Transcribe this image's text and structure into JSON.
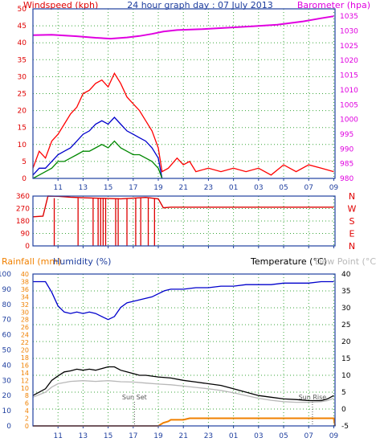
{
  "colors": {
    "frame": "#1f3f9f",
    "grid": "#3aa63a",
    "gust": "#ff0000",
    "wind_avg": "#0000cc",
    "wind_low": "#008800",
    "barometer": "#e000e0",
    "direction": "#dd0000",
    "humidity": "#0000cc",
    "temperature": "#000000",
    "dewpoint": "#b8b8b8",
    "rainfall": "#f08000",
    "label_red": "#e00000",
    "label_magenta": "#e000e0",
    "label_blue": "#1f3f9f",
    "label_orange": "#f08000"
  },
  "chart_data": [
    {
      "type": "line",
      "title": "24 hour graph day : 07 July 2013",
      "ylabel": "Windspeed (kph)",
      "y2label": "Barometer (hpa)",
      "x_start_hour": 9,
      "x_end_hour": 33.1,
      "x_ticks": [
        "11",
        "13",
        "15",
        "17",
        "19",
        "21",
        "23",
        "01",
        "03",
        "05",
        "07",
        "09"
      ],
      "ylim": [
        0,
        50
      ],
      "yticks": [
        0,
        5,
        10,
        15,
        20,
        25,
        30,
        35,
        40,
        45,
        50
      ],
      "y2lim": [
        980,
        1037.5
      ],
      "y2ticks": [
        980,
        985,
        990,
        995,
        1000,
        1005,
        1010,
        1015,
        1020,
        1025,
        1030,
        1035
      ],
      "grid": true,
      "series": [
        {
          "name": "Barometer",
          "axis": "right",
          "points": [
            [
              9.0,
              1028.6
            ],
            [
              10.5,
              1028.7
            ],
            [
              12.5,
              1028.2
            ],
            [
              14.0,
              1027.7
            ],
            [
              15.2,
              1027.4
            ],
            [
              16.5,
              1027.8
            ],
            [
              17.5,
              1028.3
            ],
            [
              18.5,
              1029.0
            ],
            [
              19.4,
              1029.8
            ],
            [
              20.5,
              1030.3
            ],
            [
              22.5,
              1030.6
            ],
            [
              24.5,
              1031.1
            ],
            [
              26.5,
              1031.6
            ],
            [
              28.5,
              1032.1
            ],
            [
              30.5,
              1033.2
            ],
            [
              32.0,
              1034.3
            ],
            [
              33.0,
              1035.0
            ]
          ]
        },
        {
          "name": "Gust",
          "axis": "left",
          "points": [
            [
              9.0,
              3
            ],
            [
              9.5,
              8
            ],
            [
              10.0,
              6
            ],
            [
              10.5,
              11
            ],
            [
              11.0,
              13
            ],
            [
              11.5,
              16
            ],
            [
              12.0,
              19
            ],
            [
              12.5,
              21
            ],
            [
              13.0,
              25
            ],
            [
              13.5,
              26
            ],
            [
              14.0,
              28
            ],
            [
              14.5,
              29
            ],
            [
              15.0,
              27
            ],
            [
              15.5,
              31
            ],
            [
              16.0,
              28
            ],
            [
              16.5,
              24
            ],
            [
              17.0,
              22
            ],
            [
              17.5,
              20
            ],
            [
              18.0,
              17
            ],
            [
              18.5,
              14
            ],
            [
              19.0,
              9
            ],
            [
              19.3,
              2
            ],
            [
              19.8,
              3
            ],
            [
              20.5,
              6
            ],
            [
              21.0,
              4
            ],
            [
              21.5,
              5
            ],
            [
              22.0,
              2
            ],
            [
              23.0,
              3
            ],
            [
              24.0,
              2
            ],
            [
              25.0,
              3
            ],
            [
              26.0,
              2
            ],
            [
              27.0,
              3
            ],
            [
              28.0,
              1
            ],
            [
              29.0,
              4
            ],
            [
              30.0,
              2
            ],
            [
              31.0,
              4
            ],
            [
              32.0,
              3
            ],
            [
              33.0,
              2
            ]
          ]
        },
        {
          "name": "Wind Average",
          "axis": "left",
          "points": [
            [
              9.0,
              1
            ],
            [
              9.5,
              3
            ],
            [
              10.0,
              3
            ],
            [
              10.5,
              5
            ],
            [
              11.0,
              7
            ],
            [
              11.5,
              8
            ],
            [
              12.0,
              9
            ],
            [
              12.5,
              11
            ],
            [
              13.0,
              13
            ],
            [
              13.5,
              14
            ],
            [
              14.0,
              16
            ],
            [
              14.5,
              17
            ],
            [
              15.0,
              16
            ],
            [
              15.5,
              18
            ],
            [
              16.0,
              16
            ],
            [
              16.5,
              14
            ],
            [
              17.0,
              13
            ],
            [
              17.5,
              12
            ],
            [
              18.0,
              11
            ],
            [
              18.5,
              9
            ],
            [
              19.0,
              6
            ],
            [
              19.3,
              0
            ]
          ]
        },
        {
          "name": "Wind Low",
          "axis": "left",
          "points": [
            [
              9.0,
              0
            ],
            [
              9.5,
              1
            ],
            [
              10.0,
              2
            ],
            [
              10.5,
              3
            ],
            [
              11.0,
              5
            ],
            [
              11.5,
              5
            ],
            [
              12.0,
              6
            ],
            [
              12.5,
              7
            ],
            [
              13.0,
              8
            ],
            [
              13.5,
              8
            ],
            [
              14.0,
              9
            ],
            [
              14.5,
              10
            ],
            [
              15.0,
              9
            ],
            [
              15.5,
              11
            ],
            [
              16.0,
              9
            ],
            [
              16.5,
              8
            ],
            [
              17.0,
              7
            ],
            [
              17.5,
              7
            ],
            [
              18.0,
              6
            ],
            [
              18.5,
              5
            ],
            [
              19.0,
              3
            ],
            [
              19.3,
              0
            ]
          ]
        }
      ]
    },
    {
      "type": "line",
      "ylabel_letters": [
        "N",
        "W",
        "S",
        "E",
        "N"
      ],
      "ylim": [
        0,
        360
      ],
      "yticks": [
        0,
        90,
        180,
        270,
        360
      ],
      "grid": true,
      "series": [
        {
          "name": "Wind Direction",
          "points": [
            [
              9.0,
              210
            ],
            [
              9.8,
              215
            ],
            [
              10.2,
              360
            ],
            [
              11.0,
              358
            ],
            [
              12.0,
              352
            ],
            [
              13.0,
              348
            ],
            [
              14.0,
              345
            ],
            [
              15.0,
              343
            ],
            [
              16.0,
              340
            ],
            [
              17.0,
              345
            ],
            [
              18.0,
              350
            ],
            [
              19.0,
              340
            ],
            [
              19.4,
              275
            ],
            [
              20.0,
              280
            ],
            [
              33.0,
              280
            ]
          ]
        },
        {
          "name": "Direction Drops",
          "drops": [
            10.7,
            12.6,
            13.8,
            14.2,
            14.4,
            14.6,
            14.8,
            15.6,
            15.8,
            16.5,
            17.2,
            17.6,
            18.2,
            18.7
          ]
        }
      ]
    },
    {
      "type": "line",
      "ylabel_left": "Rainfall (mm)",
      "ylabel_humidity": "Humidity (%)",
      "ylabel_right": "Temperature (°C)",
      "ylabel_dew": "Dew Point (°C)",
      "annotations": [
        {
          "text": "Sun Set",
          "hour": 17.1
        },
        {
          "text": "Sun Rise",
          "hour": 31.3
        }
      ],
      "humidity_ylim": [
        0,
        100
      ],
      "humidity_ticks": [
        0,
        10,
        20,
        30,
        40,
        50,
        60,
        70,
        80,
        90,
        100
      ],
      "rain_ylim": [
        0,
        40
      ],
      "rain_ticks": [
        0,
        2,
        4,
        6,
        8,
        10,
        12,
        14,
        16,
        18,
        20,
        22,
        24,
        26,
        28,
        30,
        32,
        34,
        36,
        38,
        40
      ],
      "temp_ylim": [
        -5,
        40
      ],
      "temp_ticks": [
        -5,
        0,
        5,
        10,
        15,
        20,
        25,
        30,
        35,
        40
      ],
      "grid": true,
      "series": [
        {
          "name": "Humidity",
          "axis": "humidity",
          "points": [
            [
              9.0,
              95
            ],
            [
              10.0,
              95
            ],
            [
              10.5,
              88
            ],
            [
              11.0,
              79
            ],
            [
              11.5,
              75
            ],
            [
              12.0,
              74
            ],
            [
              12.5,
              75
            ],
            [
              13.0,
              74
            ],
            [
              13.5,
              75
            ],
            [
              14.0,
              74
            ],
            [
              14.5,
              72
            ],
            [
              15.0,
              70
            ],
            [
              15.5,
              72
            ],
            [
              16.0,
              78
            ],
            [
              16.5,
              81
            ],
            [
              17.0,
              82
            ],
            [
              17.5,
              83
            ],
            [
              18.0,
              84
            ],
            [
              18.5,
              85
            ],
            [
              19.0,
              87
            ],
            [
              19.5,
              89
            ],
            [
              20.0,
              90
            ],
            [
              21.0,
              90
            ],
            [
              22.0,
              91
            ],
            [
              23.0,
              91
            ],
            [
              24.0,
              92
            ],
            [
              25.0,
              92
            ],
            [
              26.0,
              93
            ],
            [
              27.0,
              93
            ],
            [
              28.0,
              93
            ],
            [
              29.0,
              94
            ],
            [
              30.0,
              94
            ],
            [
              31.0,
              94
            ],
            [
              32.0,
              95
            ],
            [
              33.0,
              95
            ]
          ]
        },
        {
          "name": "Temperature",
          "axis": "temp",
          "points": [
            [
              9.0,
              4.0
            ],
            [
              10.0,
              6.0
            ],
            [
              10.5,
              8.5
            ],
            [
              11.0,
              9.8
            ],
            [
              11.5,
              11.0
            ],
            [
              12.0,
              11.3
            ],
            [
              12.5,
              11.8
            ],
            [
              13.0,
              11.5
            ],
            [
              13.5,
              11.8
            ],
            [
              14.0,
              11.5
            ],
            [
              14.5,
              12.0
            ],
            [
              15.0,
              12.5
            ],
            [
              15.5,
              12.5
            ],
            [
              16.0,
              11.5
            ],
            [
              16.5,
              11.0
            ],
            [
              17.0,
              10.5
            ],
            [
              17.5,
              10.0
            ],
            [
              18.0,
              10.0
            ],
            [
              19.0,
              9.5
            ],
            [
              20.0,
              9.2
            ],
            [
              21.0,
              8.5
            ],
            [
              22.0,
              8.0
            ],
            [
              23.0,
              7.5
            ],
            [
              24.0,
              7.0
            ],
            [
              25.0,
              6.0
            ],
            [
              26.0,
              5.0
            ],
            [
              27.0,
              4.0
            ],
            [
              28.0,
              3.5
            ],
            [
              29.0,
              3.0
            ],
            [
              30.0,
              2.8
            ],
            [
              31.0,
              2.5
            ],
            [
              32.0,
              2.5
            ],
            [
              32.5,
              3.0
            ],
            [
              33.0,
              4.0
            ]
          ]
        },
        {
          "name": "Dew Point",
          "axis": "temp",
          "points": [
            [
              9.0,
              3.5
            ],
            [
              10.0,
              5.0
            ],
            [
              10.5,
              6.5
            ],
            [
              11.0,
              7.5
            ],
            [
              12.0,
              8.2
            ],
            [
              13.0,
              8.4
            ],
            [
              14.0,
              8.2
            ],
            [
              15.0,
              8.4
            ],
            [
              16.0,
              8.1
            ],
            [
              17.0,
              8.0
            ],
            [
              18.0,
              7.7
            ],
            [
              19.0,
              7.4
            ],
            [
              20.0,
              7.2
            ],
            [
              21.0,
              6.8
            ],
            [
              22.0,
              6.4
            ],
            [
              23.0,
              6.0
            ],
            [
              24.0,
              5.5
            ],
            [
              25.0,
              4.8
            ],
            [
              26.0,
              4.0
            ],
            [
              27.0,
              3.2
            ],
            [
              28.0,
              2.6
            ],
            [
              29.0,
              2.2
            ],
            [
              30.0,
              2.0
            ],
            [
              31.0,
              2.0
            ],
            [
              32.0,
              2.2
            ],
            [
              32.5,
              2.5
            ],
            [
              33.0,
              3.2
            ]
          ]
        },
        {
          "name": "Rainfall",
          "axis": "rain",
          "points": [
            [
              9.0,
              0.0
            ],
            [
              19.0,
              0.0
            ],
            [
              19.4,
              0.8
            ],
            [
              19.8,
              1.2
            ],
            [
              20.0,
              1.6
            ],
            [
              21.0,
              1.6
            ],
            [
              21.5,
              2.0
            ],
            [
              33.0,
              2.0
            ],
            [
              33.1,
              0.0
            ]
          ]
        }
      ]
    }
  ]
}
